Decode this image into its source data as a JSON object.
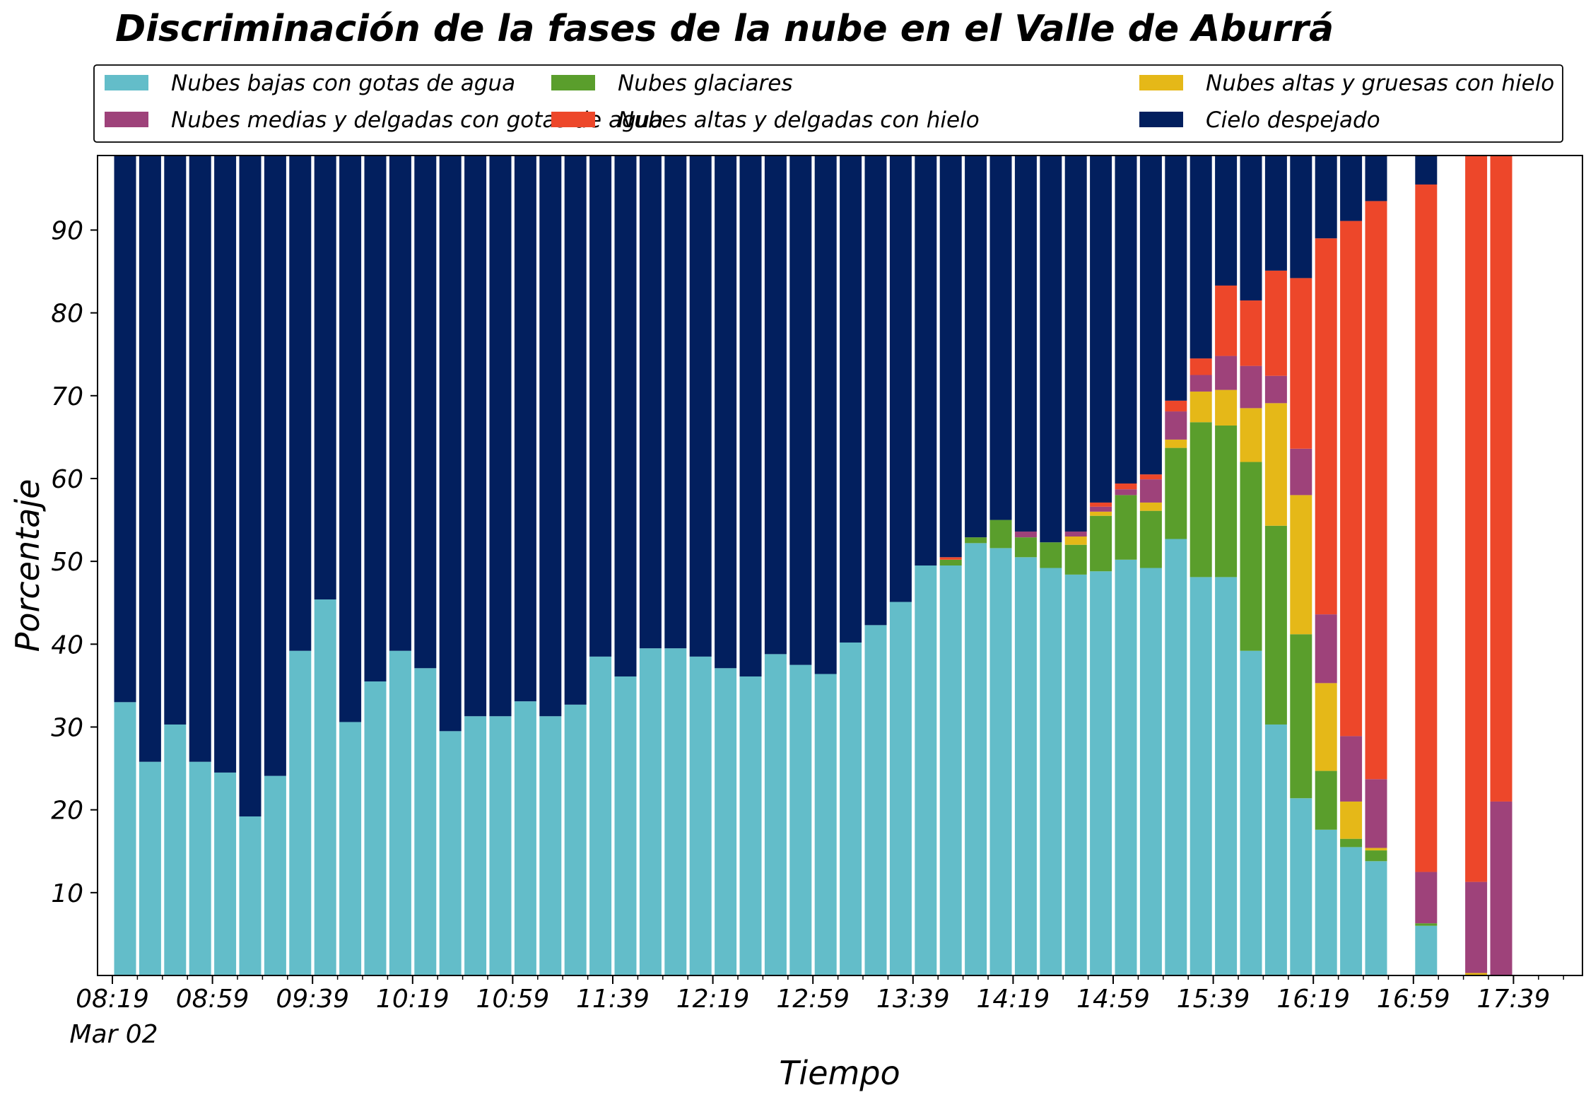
{
  "chart_data": {
    "type": "bar",
    "stacked": true,
    "title": "Discriminación de la fases de la nube en el Valle de Aburrá",
    "xlabel": "Tiempo",
    "ylabel": "Porcentaje",
    "ylim": [
      0,
      100
    ],
    "yticks": [
      10,
      20,
      30,
      40,
      50,
      60,
      70,
      80,
      90
    ],
    "xtick_labels": [
      "08:19",
      "08:59",
      "09:39",
      "10:19",
      "10:59",
      "11:39",
      "12:19",
      "12:59",
      "13:39",
      "14:19",
      "14:59",
      "15:39",
      "16:19",
      "16:59",
      "17:39"
    ],
    "xtick_sublabel": "Mar 02",
    "x_start": "08:19",
    "x_interval_minutes": 10,
    "legend_position": "top",
    "grid": false,
    "series": [
      {
        "name": "Nubes bajas con gotas de agua",
        "color": "#63bdc9",
        "values": [
          33.0,
          25.8,
          30.3,
          25.8,
          24.5,
          19.2,
          24.1,
          39.2,
          45.4,
          30.6,
          35.5,
          39.2,
          37.1,
          29.5,
          31.3,
          31.3,
          33.1,
          31.3,
          32.7,
          38.5,
          36.1,
          39.5,
          39.5,
          38.5,
          37.1,
          36.1,
          38.8,
          37.5,
          36.4,
          40.2,
          42.3,
          45.1,
          49.5,
          49.5,
          52.2,
          51.6,
          50.5,
          49.2,
          48.4,
          48.8,
          50.2,
          49.2,
          52.7,
          48.1,
          48.1,
          39.2,
          30.3,
          21.4,
          17.6,
          15.5,
          13.8,
          null,
          6.0,
          null,
          null,
          null,
          null
        ]
      },
      {
        "name": "Nubes glaciares",
        "color": "#5a9e2c",
        "values": [
          0,
          0,
          0,
          0,
          0,
          0,
          0,
          0,
          0,
          0,
          0,
          0,
          0,
          0,
          0,
          0,
          0,
          0,
          0,
          0,
          0,
          0,
          0,
          0,
          0,
          0,
          0,
          0,
          0,
          0,
          0,
          0,
          0,
          0.7,
          0.7,
          3.4,
          2.4,
          3.1,
          3.6,
          6.7,
          7.8,
          6.9,
          11.0,
          18.7,
          18.3,
          22.8,
          24.0,
          19.8,
          7.1,
          1.0,
          1.3,
          null,
          0.3,
          null,
          null,
          null,
          null
        ]
      },
      {
        "name": "Nubes altas y gruesas con hielo",
        "color": "#e5b818",
        "values": [
          0,
          0,
          0,
          0,
          0,
          0,
          0,
          0,
          0,
          0,
          0,
          0,
          0,
          0,
          0,
          0,
          0,
          0,
          0,
          0,
          0,
          0,
          0,
          0,
          0,
          0,
          0,
          0,
          0,
          0,
          0,
          0,
          0,
          0,
          0,
          0,
          0,
          0,
          1.0,
          0.5,
          0,
          1.0,
          1.0,
          3.7,
          4.3,
          6.5,
          14.8,
          16.8,
          10.6,
          4.5,
          0.3,
          null,
          0,
          null,
          0.3,
          0,
          null
        ]
      },
      {
        "name": "Nubes medias y delgadas con gotas de agua",
        "color": "#9e427a",
        "values": [
          0,
          0,
          0,
          0,
          0,
          0,
          0,
          0,
          0,
          0,
          0,
          0,
          0,
          0,
          0,
          0,
          0,
          0,
          0,
          0,
          0,
          0,
          0,
          0,
          0,
          0,
          0,
          0,
          0,
          0,
          0,
          0,
          0,
          0,
          0,
          0,
          0.7,
          0,
          0.6,
          0.6,
          0.7,
          2.8,
          3.4,
          2.0,
          4.1,
          5.1,
          3.3,
          5.6,
          8.3,
          7.9,
          8.3,
          null,
          6.2,
          null,
          11.0,
          21.0,
          null
        ]
      },
      {
        "name": "Nubes altas y delgadas con hielo",
        "color": "#ed472a",
        "values": [
          0,
          0,
          0,
          0,
          0,
          0,
          0,
          0,
          0,
          0,
          0,
          0,
          0,
          0,
          0,
          0,
          0,
          0,
          0,
          0,
          0,
          0,
          0,
          0,
          0,
          0,
          0,
          0,
          0,
          0,
          0,
          0,
          0,
          0.3,
          0,
          0,
          0,
          0,
          0,
          0.5,
          0.7,
          0.6,
          1.3,
          2.0,
          8.5,
          7.9,
          12.7,
          20.6,
          45.4,
          62.2,
          69.8,
          null,
          83.0,
          null,
          88.7,
          79.0,
          null
        ]
      },
      {
        "name": "Cielo despejado",
        "color": "#021f5e",
        "values": [
          67.0,
          74.2,
          69.7,
          74.2,
          75.5,
          80.8,
          75.9,
          60.8,
          54.6,
          69.4,
          64.5,
          60.8,
          62.9,
          70.5,
          68.7,
          68.7,
          66.9,
          68.7,
          67.3,
          61.5,
          63.9,
          60.5,
          60.5,
          61.5,
          62.9,
          63.9,
          61.2,
          62.5,
          63.6,
          59.8,
          57.7,
          54.9,
          50.5,
          49.5,
          47.1,
          45.0,
          46.4,
          47.7,
          46.4,
          42.9,
          40.6,
          39.5,
          30.6,
          25.5,
          16.7,
          18.5,
          14.9,
          15.8,
          11.0,
          8.9,
          6.5,
          null,
          4.5,
          null,
          0,
          0,
          null
        ]
      }
    ]
  }
}
